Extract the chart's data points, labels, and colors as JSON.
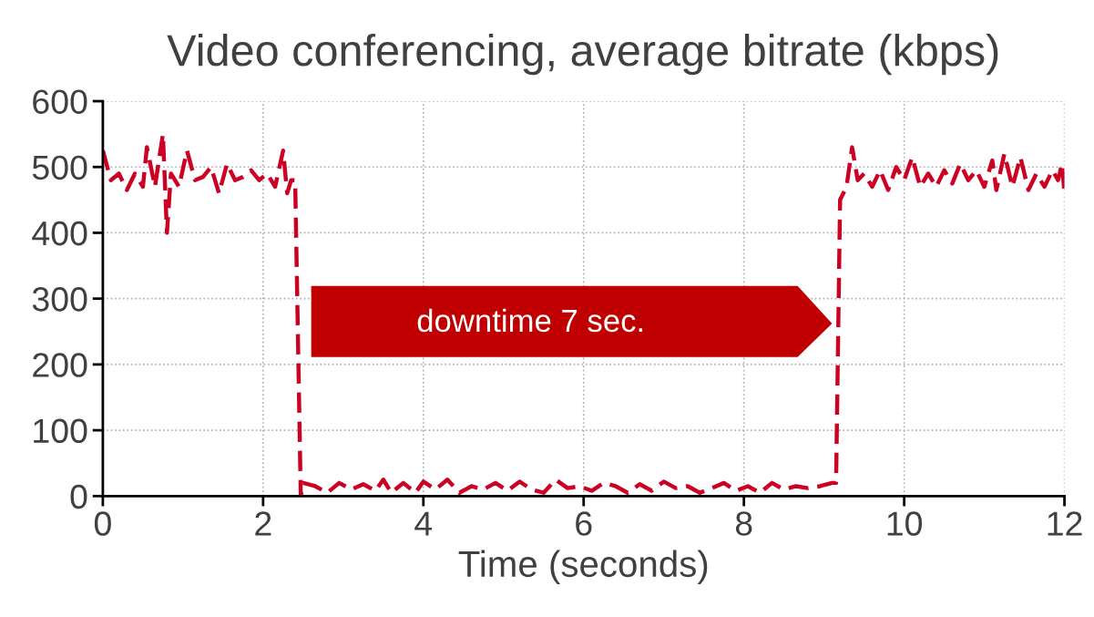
{
  "chart_data": {
    "type": "line",
    "title": "Video conferencing, average bitrate (kbps)",
    "xlabel": "Time (seconds)",
    "annotations": [
      "downtime 7 sec."
    ],
    "series": [
      {
        "color": "#cc0022",
        "x": [
          0,
          0.1,
          0.2,
          0.3,
          0.4,
          0.5,
          0.55,
          0.65,
          0.75,
          0.8,
          0.85,
          0.95,
          1.05,
          1.15,
          1.25,
          1.35,
          1.45,
          1.55,
          1.65,
          1.75,
          1.85,
          1.95,
          2.05,
          2.15,
          2.25,
          2.3,
          2.35,
          2.4,
          2.47,
          2.5,
          2.65,
          2.8,
          2.95,
          3.1,
          3.25,
          3.4,
          3.5,
          3.6,
          3.75,
          3.9,
          4.0,
          4.15,
          4.3,
          4.45,
          4.6,
          4.75,
          4.9,
          5.05,
          5.2,
          5.35,
          5.5,
          5.65,
          5.8,
          5.95,
          6.1,
          6.25,
          6.4,
          6.55,
          6.7,
          6.85,
          7.0,
          7.15,
          7.3,
          7.45,
          7.6,
          7.75,
          7.9,
          8.05,
          8.2,
          8.35,
          8.5,
          8.65,
          8.8,
          8.95,
          9.1,
          9.15,
          9.2,
          9.28,
          9.35,
          9.42,
          9.5,
          9.6,
          9.7,
          9.8,
          9.9,
          10.0,
          10.1,
          10.2,
          10.3,
          10.4,
          10.5,
          10.6,
          10.7,
          10.8,
          10.9,
          11.0,
          11.1,
          11.15,
          11.25,
          11.35,
          11.45,
          11.55,
          11.65,
          11.75,
          11.85,
          11.92,
          11.97,
          12.0
        ],
        "values": [
          525,
          480,
          490,
          465,
          490,
          470,
          530,
          470,
          550,
          400,
          490,
          470,
          525,
          480,
          485,
          500,
          460,
          505,
          480,
          485,
          495,
          480,
          490,
          470,
          525,
          460,
          480,
          480,
          0,
          20,
          15,
          5,
          20,
          10,
          18,
          8,
          25,
          5,
          20,
          5,
          22,
          10,
          25,
          5,
          15,
          10,
          20,
          8,
          22,
          10,
          5,
          25,
          12,
          15,
          8,
          20,
          15,
          5,
          18,
          8,
          22,
          12,
          15,
          5,
          12,
          20,
          8,
          15,
          5,
          20,
          10,
          15,
          12,
          15,
          20,
          20,
          450,
          470,
          530,
          480,
          490,
          470,
          495,
          465,
          500,
          480,
          515,
          470,
          490,
          470,
          495,
          475,
          505,
          480,
          495,
          470,
          510,
          465,
          520,
          470,
          515,
          465,
          490,
          470,
          495,
          480,
          505,
          460
        ]
      }
    ],
    "xlim": [
      0,
      12
    ],
    "xticks": [
      0,
      2,
      4,
      6,
      8,
      10,
      12
    ],
    "ylim": [
      0,
      600
    ],
    "yticks": [
      0,
      100,
      200,
      300,
      400,
      500,
      600
    ],
    "grid": true,
    "line_style": "dashed",
    "marker": "none"
  }
}
